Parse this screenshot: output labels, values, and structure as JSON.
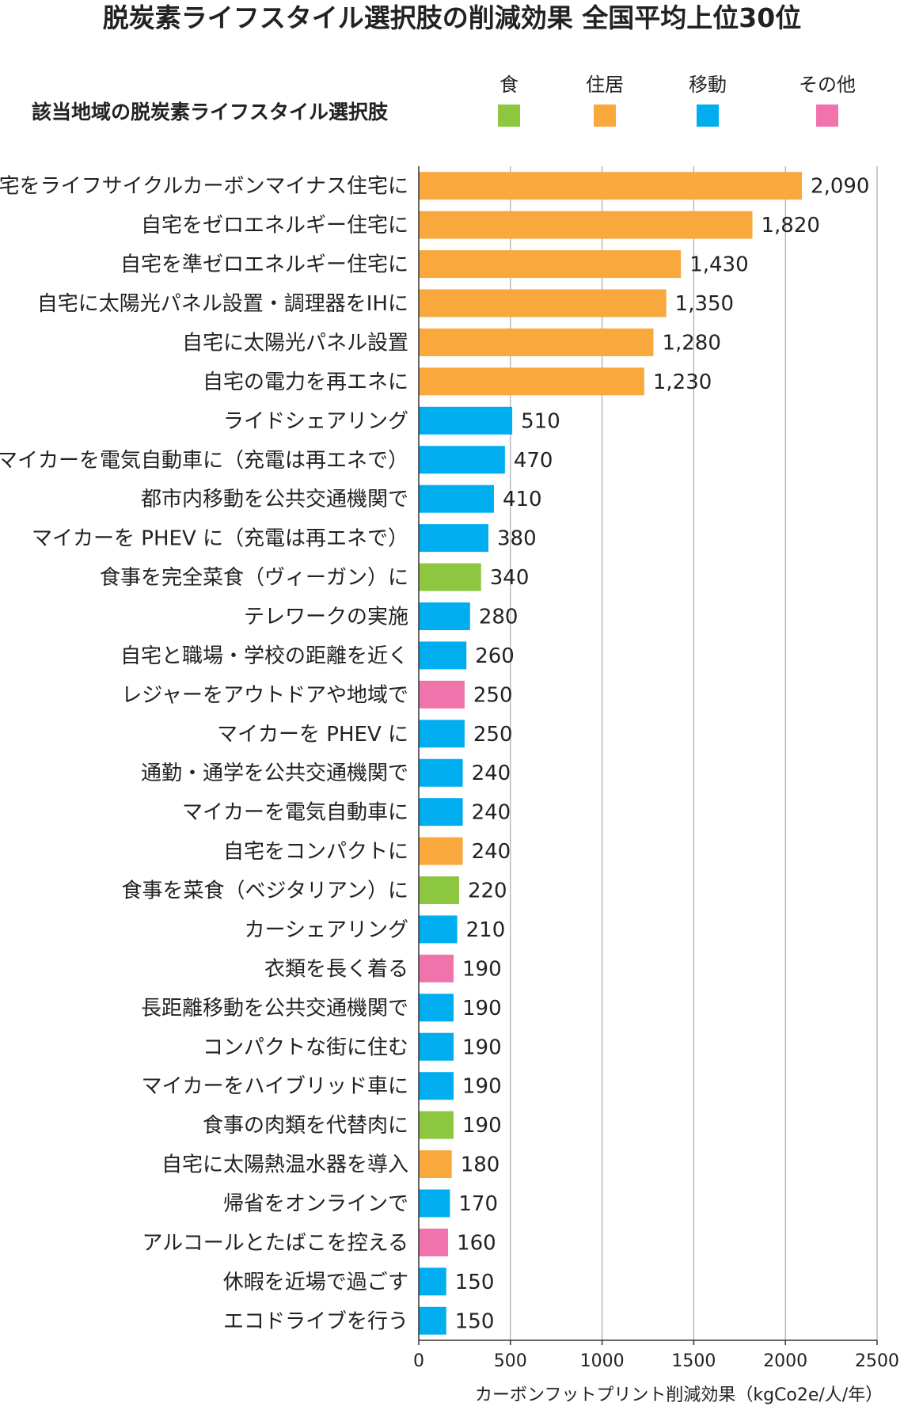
{
  "title": "脱炭素ライフスタイル選択肢の削減効果 全国平均上位30位",
  "subtitle": "該当地域の脱炭素ライフスタイル選択肢",
  "colors": {
    "食": "#8dc63f",
    "住居": "#f9a83e",
    "移動": "#00aeef",
    "その他": "#f173ac"
  },
  "legend": [
    {
      "label": "食",
      "color": "#8dc63f"
    },
    {
      "label": "住居",
      "color": "#f9a83e"
    },
    {
      "label": "移動",
      "color": "#00aeef"
    },
    {
      "label": "その他",
      "color": "#f173ac"
    }
  ],
  "chart_data": {
    "type": "bar",
    "orientation": "horizontal",
    "xlabel": "カーボンフットプリント削減効果（kgCo2e/人/年）",
    "xlim": [
      0,
      2500
    ],
    "xticks": [
      0,
      500,
      1000,
      1500,
      2000,
      2500
    ],
    "grid": true,
    "categories": [
      "自宅をライフサイクルカーボンマイナス住宅に",
      "自宅をゼロエネルギー住宅に",
      "自宅を準ゼロエネルギー住宅に",
      "自宅に太陽光パネル設置・調理器をIHに",
      "自宅に太陽光パネル設置",
      "自宅の電力を再エネに",
      "ライドシェアリング",
      "マイカーを電気自動車に（充電は再エネで）",
      "都市内移動を公共交通機関で",
      "マイカーを PHEV に（充電は再エネで）",
      "食事を完全菜食（ヴィーガン）に",
      "テレワークの実施",
      "自宅と職場・学校の距離を近く",
      "レジャーをアウトドアや地域で",
      "マイカーを PHEV に",
      "通勤・通学を公共交通機関で",
      "マイカーを電気自動車に",
      "自宅をコンパクトに",
      "食事を菜食（ベジタリアン）に",
      "カーシェアリング",
      "衣類を長く着る",
      "長距離移動を公共交通機関で",
      "コンパクトな街に住む",
      "マイカーをハイブリッド車に",
      "食事の肉類を代替肉に",
      "自宅に太陽熱温水器を導入",
      "帰省をオンラインで",
      "アルコールとたばこを控える",
      "休暇を近場で過ごす",
      "エコドライブを行う"
    ],
    "values": [
      2090,
      1820,
      1430,
      1350,
      1280,
      1230,
      510,
      470,
      410,
      380,
      340,
      280,
      260,
      250,
      250,
      240,
      240,
      240,
      220,
      210,
      190,
      190,
      190,
      190,
      190,
      180,
      170,
      160,
      150,
      150
    ],
    "value_labels": [
      "2,090",
      "1,820",
      "1,430",
      "1,350",
      "1,280",
      "1,230",
      "510",
      "470",
      "410",
      "380",
      "340",
      "280",
      "260",
      "250",
      "250",
      "240",
      "240",
      "240",
      "220",
      "210",
      "190",
      "190",
      "190",
      "190",
      "190",
      "180",
      "170",
      "160",
      "150",
      "150"
    ],
    "groups": [
      "住居",
      "住居",
      "住居",
      "住居",
      "住居",
      "住居",
      "移動",
      "移動",
      "移動",
      "移動",
      "食",
      "移動",
      "移動",
      "その他",
      "移動",
      "移動",
      "移動",
      "住居",
      "食",
      "移動",
      "その他",
      "移動",
      "移動",
      "移動",
      "食",
      "住居",
      "移動",
      "その他",
      "移動",
      "移動"
    ]
  }
}
